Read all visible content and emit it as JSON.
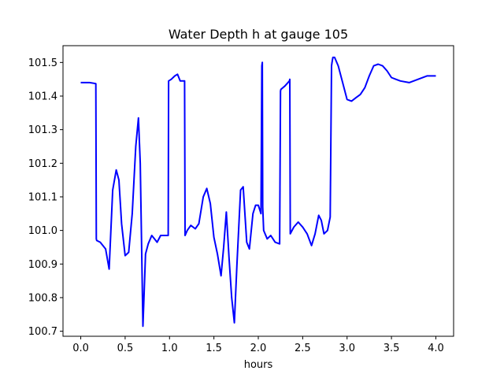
{
  "chart_data": {
    "type": "line",
    "title": "Water Depth h at gauge 105",
    "xlabel": "hours",
    "ylabel": "",
    "xlim": [
      -0.2,
      4.2
    ],
    "ylim": [
      100.685,
      101.55
    ],
    "xticks": [
      0.0,
      0.5,
      1.0,
      1.5,
      2.0,
      2.5,
      3.0,
      3.5,
      4.0
    ],
    "xtick_labels": [
      "0.0",
      "0.5",
      "1.0",
      "1.5",
      "2.0",
      "2.5",
      "3.0",
      "3.5",
      "4.0"
    ],
    "yticks": [
      100.7,
      100.8,
      100.9,
      101.0,
      101.1,
      101.2,
      101.3,
      101.4,
      101.5
    ],
    "ytick_labels": [
      "100.7",
      "100.8",
      "100.9",
      "101.0",
      "101.1",
      "101.2",
      "101.3",
      "101.4",
      "101.5"
    ],
    "grid": false,
    "series": [
      {
        "color": "#0000ff",
        "x": [
          0.0,
          0.1,
          0.17,
          0.175,
          0.18,
          0.22,
          0.28,
          0.32,
          0.36,
          0.4,
          0.43,
          0.46,
          0.5,
          0.54,
          0.58,
          0.62,
          0.65,
          0.67,
          0.7,
          0.73,
          0.76,
          0.8,
          0.83,
          0.86,
          0.9,
          0.95,
          0.985,
          0.99,
          1.02,
          1.06,
          1.09,
          1.12,
          1.17,
          1.175,
          1.2,
          1.24,
          1.29,
          1.33,
          1.38,
          1.42,
          1.46,
          1.5,
          1.54,
          1.58,
          1.61,
          1.64,
          1.67,
          1.7,
          1.73,
          1.76,
          1.8,
          1.83,
          1.87,
          1.9,
          1.94,
          1.97,
          2.0,
          2.03,
          2.04,
          2.045,
          2.05,
          2.06,
          2.1,
          2.14,
          2.19,
          2.24,
          2.25,
          2.255,
          2.3,
          2.35,
          2.355,
          2.36,
          2.4,
          2.45,
          2.5,
          2.55,
          2.6,
          2.64,
          2.68,
          2.71,
          2.74,
          2.78,
          2.81,
          2.825,
          2.83,
          2.84,
          2.86,
          2.9,
          2.95,
          3.0,
          3.05,
          3.1,
          3.15,
          3.2,
          3.25,
          3.3,
          3.35,
          3.4,
          3.45,
          3.5,
          3.55,
          3.6,
          3.7,
          3.8,
          3.9,
          4.0
        ],
        "y": [
          101.44,
          101.44,
          101.437,
          100.975,
          100.97,
          100.965,
          100.945,
          100.885,
          101.12,
          101.18,
          101.15,
          101.02,
          100.925,
          100.935,
          101.05,
          101.25,
          101.335,
          101.2,
          100.715,
          100.93,
          100.96,
          100.985,
          100.975,
          100.965,
          100.985,
          100.985,
          100.985,
          101.445,
          101.45,
          101.46,
          101.465,
          101.445,
          101.445,
          100.985,
          101.0,
          101.015,
          101.005,
          101.02,
          101.1,
          101.125,
          101.08,
          100.98,
          100.93,
          100.865,
          100.95,
          101.055,
          100.92,
          100.8,
          100.725,
          100.9,
          101.12,
          101.13,
          100.965,
          100.945,
          101.05,
          101.075,
          101.075,
          101.05,
          101.49,
          101.5,
          101.07,
          101.0,
          100.975,
          100.985,
          100.965,
          100.96,
          101.415,
          101.42,
          101.43,
          101.445,
          101.45,
          100.99,
          101.01,
          101.025,
          101.01,
          100.99,
          100.955,
          100.99,
          101.045,
          101.03,
          100.99,
          101.0,
          101.04,
          101.49,
          101.5,
          101.515,
          101.515,
          101.49,
          101.44,
          101.39,
          101.385,
          101.395,
          101.405,
          101.425,
          101.46,
          101.49,
          101.495,
          101.49,
          101.475,
          101.455,
          101.45,
          101.445,
          101.44,
          101.45,
          101.46,
          101.46
        ]
      }
    ]
  }
}
